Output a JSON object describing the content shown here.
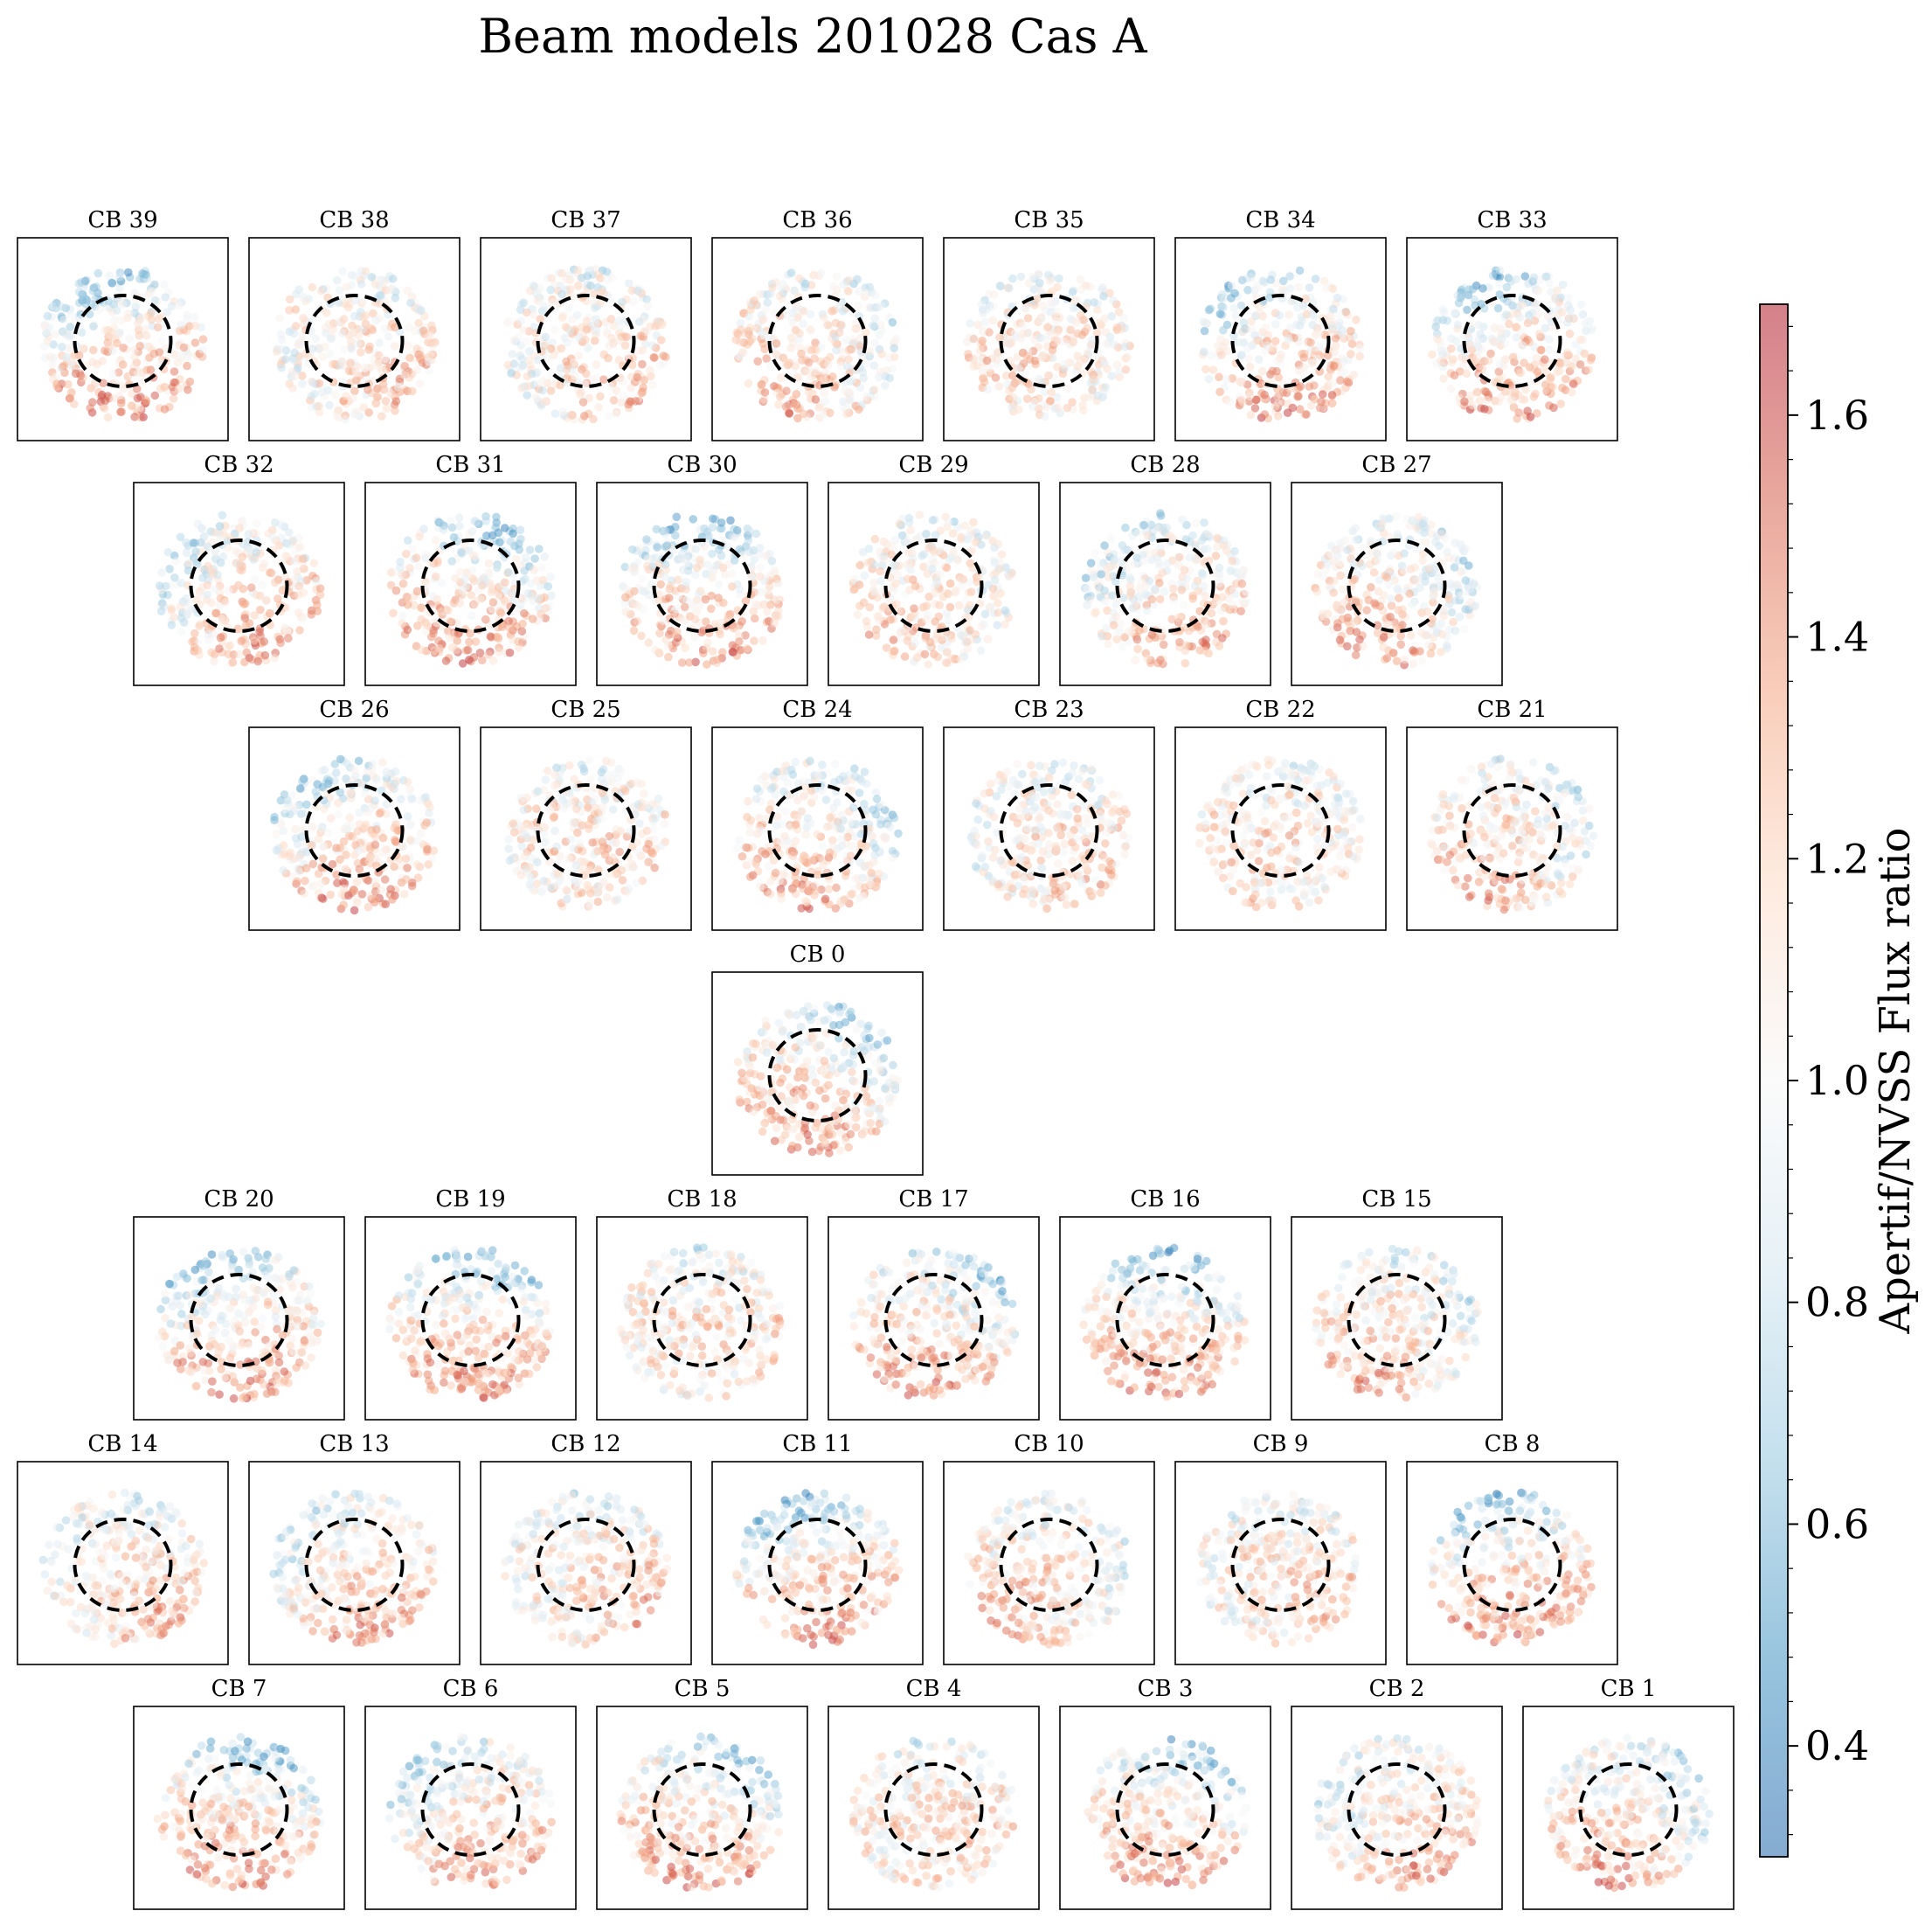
{
  "figure": {
    "title": "Beam models 201028 Cas A"
  },
  "chart_data": {
    "type": "scatter",
    "title": "Beam models 201028 Cas A",
    "description_of_panels": "Grid of 40 compound-beam (CB) panels, each a scatter of source positions colored by Apertif/NVSS flux ratio, with a dashed circle marking the beam centre region.",
    "rows": [
      [
        "CB 39",
        "CB 38",
        "CB 37",
        "CB 36",
        "CB 35",
        "CB 34",
        "CB 33"
      ],
      [
        "CB 32",
        "CB 31",
        "CB 30",
        "CB 29",
        "CB 28",
        "CB 27"
      ],
      [
        "CB 26",
        "CB 25",
        "CB 24",
        "CB 23",
        "CB 22",
        "CB 21"
      ],
      [
        "CB 0"
      ],
      [
        "CB 20",
        "CB 19",
        "CB 18",
        "CB 17",
        "CB 16",
        "CB 15"
      ],
      [
        "CB 14",
        "CB 13",
        "CB 12",
        "CB 11",
        "CB 10",
        "CB 9",
        "CB 8"
      ],
      [
        "CB 7",
        "CB 6",
        "CB 5",
        "CB 4",
        "CB 3",
        "CB 2",
        "CB 1"
      ]
    ],
    "colorbar": {
      "label": "Apertif/NVSS Flux ratio",
      "range": [
        0.3,
        1.7
      ],
      "ticks": [
        "0.4",
        "0.6",
        "0.8",
        "1.0",
        "1.2",
        "1.4",
        "1.6"
      ],
      "tick_values": [
        0.4,
        0.6,
        0.8,
        1.0,
        1.2,
        1.4,
        1.6
      ],
      "colormap": "RdBu_r",
      "colors": [
        "#2166ac",
        "#4393c3",
        "#92c5de",
        "#d1e5f0",
        "#f7f7f7",
        "#fddbc7",
        "#f4a582",
        "#d6604d",
        "#b2182b"
      ]
    },
    "marker_alpha": 0.5,
    "beam_circle_style": "dashed black"
  }
}
